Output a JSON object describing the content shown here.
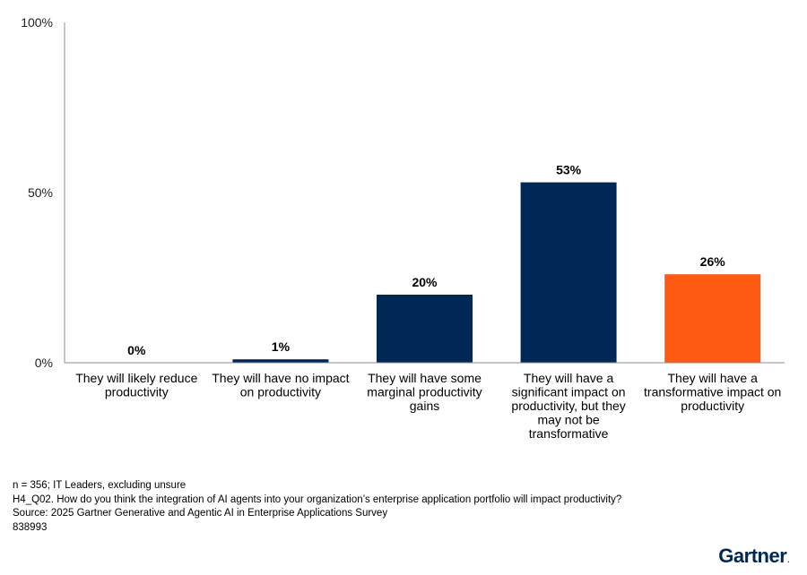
{
  "chart_data": {
    "type": "bar",
    "categories": [
      [
        "They will likely reduce",
        "productivity"
      ],
      [
        "They will have no impact",
        "on productivity"
      ],
      [
        "They will have some",
        "marginal productivity",
        "gains"
      ],
      [
        "They will have a",
        "significant impact on",
        "productivity, but they",
        "may not be",
        "transformative"
      ],
      [
        "They will have a",
        "transformative impact on",
        "productivity"
      ]
    ],
    "values": [
      0,
      1,
      20,
      53,
      26
    ],
    "value_labels": [
      "0%",
      "1%",
      "20%",
      "53%",
      "26%"
    ],
    "bar_colors": [
      "#002856",
      "#002856",
      "#002856",
      "#002856",
      "#FF5A14"
    ],
    "ylim": [
      0,
      100
    ],
    "yticks": [
      0,
      50,
      100
    ],
    "ytick_labels": [
      "0%",
      "50%",
      "100%"
    ],
    "grid": false,
    "legend": false
  },
  "footnotes": {
    "sample": "n = 356; IT Leaders, excluding unsure",
    "question": "H4_Q02. How do you think the integration of AI agents into your organization’s enterprise application portfolio will impact productivity?",
    "source": "Source: 2025 Gartner Generative and Agentic AI in Enterprise Applications Survey",
    "id": "838993"
  },
  "logo": {
    "text": "Gartner",
    "dot": "."
  },
  "colors": {
    "navy": "#002856",
    "orange": "#FF5A14",
    "axis": "#8c8c8c"
  }
}
